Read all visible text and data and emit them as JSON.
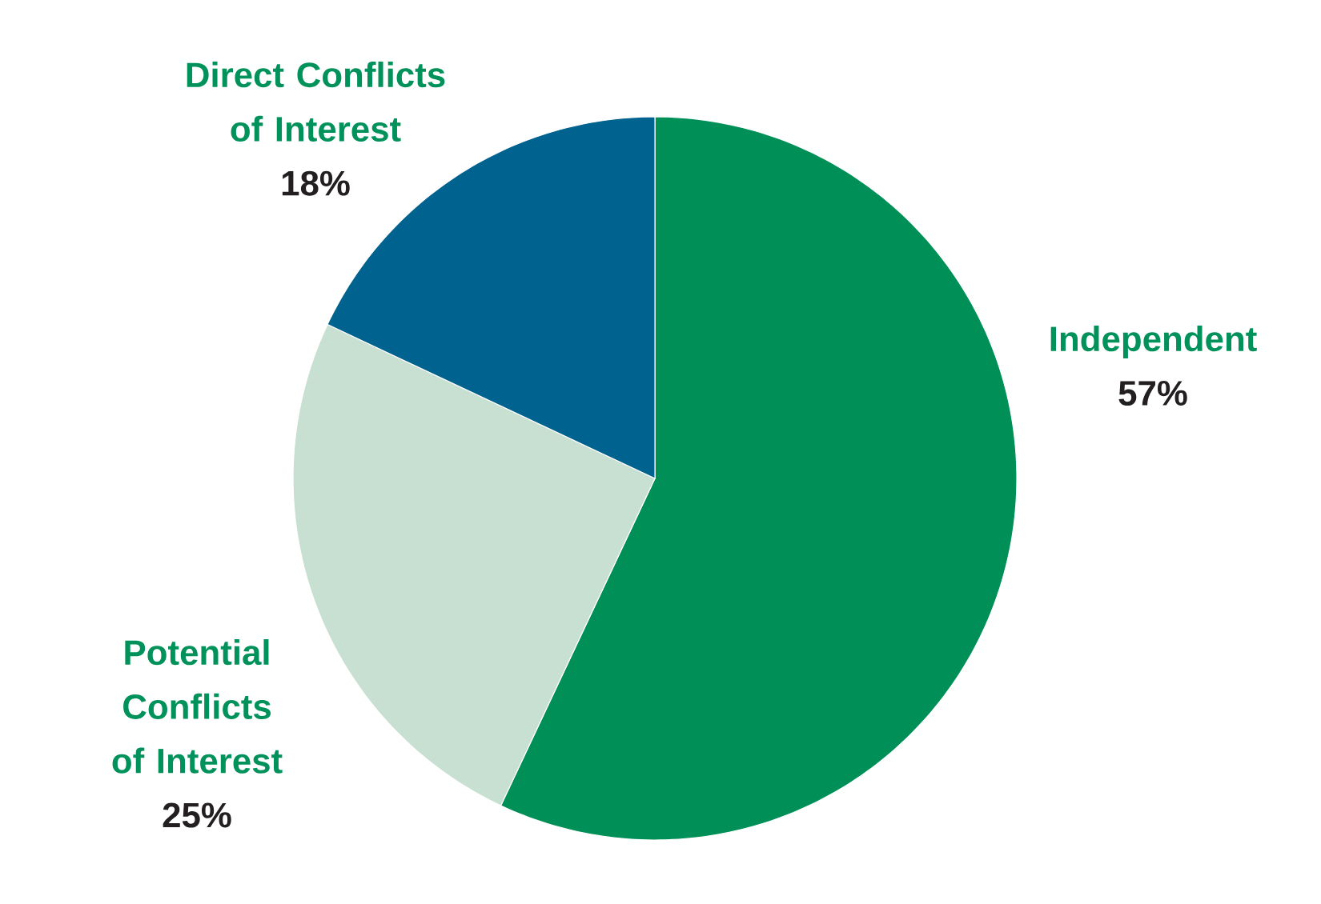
{
  "chart_data": {
    "type": "pie",
    "categories": [
      "Independent",
      "Potential Conflicts of Interest",
      "Direct Conflicts of Interest"
    ],
    "values": [
      57,
      25,
      18
    ],
    "value_labels": [
      "57%",
      "25%",
      "18%"
    ],
    "colors": [
      "#008f57",
      "#c8e0d2",
      "#00628f"
    ]
  }
}
